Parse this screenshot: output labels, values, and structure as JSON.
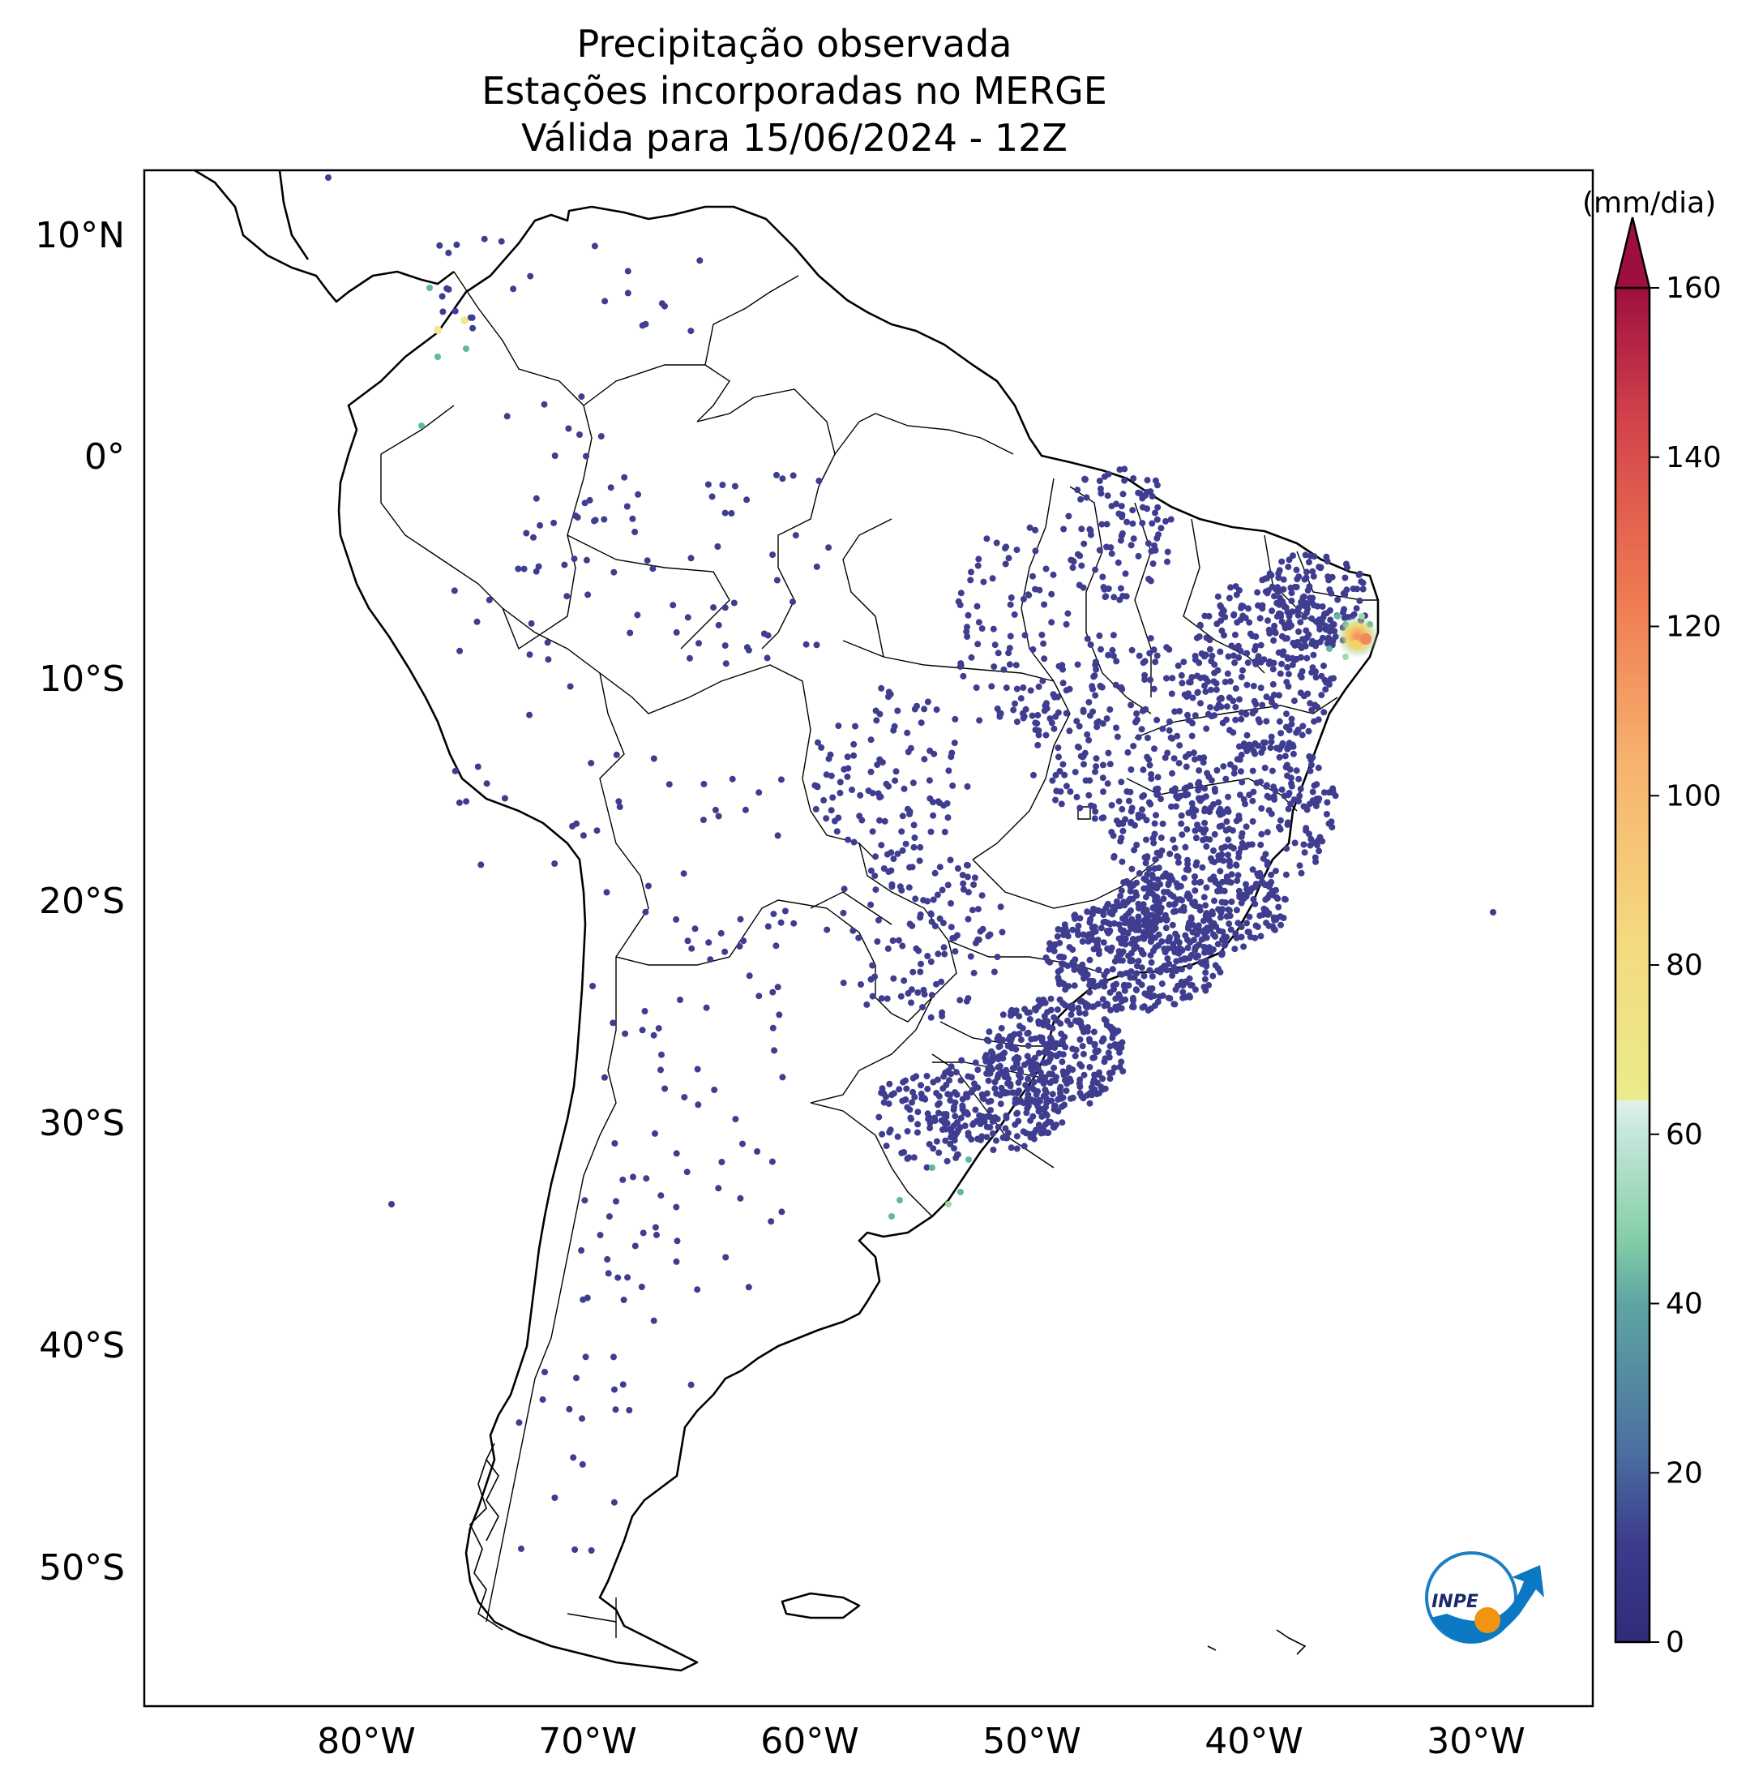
{
  "title": {
    "line1": "Precipitação observada",
    "line2": "Estações incorporadas no MERGE",
    "line3": "Válida para 15/06/2024 - 12Z"
  },
  "axes": {
    "lat_labels": [
      "10°N",
      "0°",
      "10°S",
      "20°S",
      "30°S",
      "40°S",
      "50°S"
    ],
    "lon_labels": [
      "80°W",
      "70°W",
      "60°W",
      "50°W",
      "40°W",
      "30°W"
    ]
  },
  "colorbar": {
    "unit": "(mm/dia)",
    "ticks": [
      "0",
      "20",
      "40",
      "60",
      "80",
      "100",
      "120",
      "140",
      "160"
    ],
    "colors": [
      "#3b3a8c",
      "#4a6fa0",
      "#5fa5a2",
      "#86d0a7",
      "#c9e8df",
      "#ece98a",
      "#f7c97a",
      "#f08a5b",
      "#d9464b",
      "#9e0f3f"
    ]
  },
  "logo": {
    "text": "INPE"
  },
  "station_colors": {
    "dry": "#3f3d8f",
    "wet_light": "#5fb8a0",
    "wet_med": "#9fd9a8",
    "heavy": "#f4d36a",
    "very_heavy": "#f08a5b"
  }
}
